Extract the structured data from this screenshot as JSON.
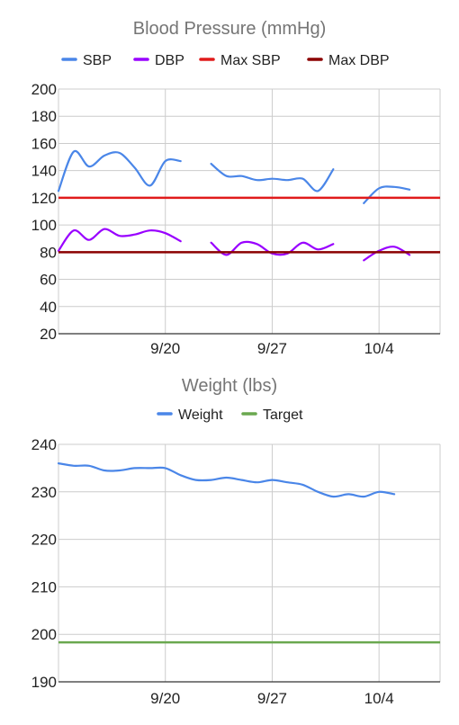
{
  "chart_data": [
    {
      "id": "bp",
      "type": "line",
      "title": "Blood Pressure (mmHg)",
      "ylim": [
        20,
        200
      ],
      "y_ticks": [
        20,
        40,
        60,
        80,
        100,
        120,
        140,
        160,
        180,
        200
      ],
      "x_tick_labels": [
        {
          "date": "2023-09-20",
          "label": "9/20"
        },
        {
          "date": "2023-09-27",
          "label": "9/27"
        },
        {
          "date": "2023-10-04",
          "label": "10/4"
        }
      ],
      "xlim": [
        "2023-09-13",
        "2023-10-08"
      ],
      "grid": true,
      "legend_position": "top",
      "series": [
        {
          "name": "SBP",
          "color": "#4a86e8",
          "segments": [
            [
              [
                "2023-09-13",
                125
              ],
              [
                "2023-09-14",
                154
              ],
              [
                "2023-09-15",
                143
              ],
              [
                "2023-09-16",
                151
              ],
              [
                "2023-09-17",
                153
              ],
              [
                "2023-09-18",
                142
              ],
              [
                "2023-09-19",
                129
              ],
              [
                "2023-09-20",
                147
              ],
              [
                "2023-09-21",
                147
              ]
            ],
            [
              [
                "2023-09-23",
                145
              ],
              [
                "2023-09-24",
                136
              ],
              [
                "2023-09-25",
                136
              ],
              [
                "2023-09-26",
                133
              ],
              [
                "2023-09-27",
                134
              ],
              [
                "2023-09-28",
                133
              ],
              [
                "2023-09-29",
                134
              ],
              [
                "2023-09-30",
                125
              ],
              [
                "2023-10-01",
                141
              ]
            ],
            [
              [
                "2023-10-03",
                116
              ],
              [
                "2023-10-04",
                127
              ],
              [
                "2023-10-05",
                128
              ],
              [
                "2023-10-06",
                126
              ]
            ]
          ]
        },
        {
          "name": "DBP",
          "color": "#9900ff",
          "segments": [
            [
              [
                "2023-09-13",
                81
              ],
              [
                "2023-09-14",
                96
              ],
              [
                "2023-09-15",
                89
              ],
              [
                "2023-09-16",
                97
              ],
              [
                "2023-09-17",
                92
              ],
              [
                "2023-09-18",
                93
              ],
              [
                "2023-09-19",
                96
              ],
              [
                "2023-09-20",
                94
              ],
              [
                "2023-09-21",
                88
              ]
            ],
            [
              [
                "2023-09-23",
                87
              ],
              [
                "2023-09-24",
                78
              ],
              [
                "2023-09-25",
                87
              ],
              [
                "2023-09-26",
                86
              ],
              [
                "2023-09-27",
                79
              ],
              [
                "2023-09-28",
                79
              ],
              [
                "2023-09-29",
                87
              ],
              [
                "2023-09-30",
                82
              ],
              [
                "2023-10-01",
                86
              ]
            ],
            [
              [
                "2023-10-03",
                74
              ],
              [
                "2023-10-04",
                81
              ],
              [
                "2023-10-05",
                84
              ],
              [
                "2023-10-06",
                78
              ]
            ]
          ]
        },
        {
          "name": "Max SBP",
          "color": "#e01b1b",
          "constant": 120
        },
        {
          "name": "Max DBP",
          "color": "#8b0000",
          "constant": 80
        }
      ]
    },
    {
      "id": "wt",
      "type": "line",
      "title": "Weight (lbs)",
      "ylim": [
        190,
        240
      ],
      "y_ticks": [
        190,
        200,
        210,
        220,
        230,
        240
      ],
      "x_tick_labels": [
        {
          "date": "2023-09-20",
          "label": "9/20"
        },
        {
          "date": "2023-09-27",
          "label": "9/27"
        },
        {
          "date": "2023-10-04",
          "label": "10/4"
        }
      ],
      "xlim": [
        "2023-09-13",
        "2023-10-08"
      ],
      "grid": true,
      "legend_position": "top",
      "series": [
        {
          "name": "Weight",
          "color": "#4a86e8",
          "segments": [
            [
              [
                "2023-09-13",
                236
              ],
              [
                "2023-09-14",
                235.5
              ],
              [
                "2023-09-15",
                235.5
              ],
              [
                "2023-09-16",
                234.5
              ],
              [
                "2023-09-17",
                234.5
              ],
              [
                "2023-09-18",
                235
              ],
              [
                "2023-09-19",
                235
              ],
              [
                "2023-09-20",
                235
              ],
              [
                "2023-09-21",
                233.5
              ],
              [
                "2023-09-22",
                232.5
              ],
              [
                "2023-09-23",
                232.5
              ],
              [
                "2023-09-24",
                233
              ],
              [
                "2023-09-25",
                232.5
              ],
              [
                "2023-09-26",
                232
              ],
              [
                "2023-09-27",
                232.5
              ],
              [
                "2023-09-28",
                232
              ],
              [
                "2023-09-29",
                231.5
              ],
              [
                "2023-09-30",
                230
              ],
              [
                "2023-10-01",
                229
              ],
              [
                "2023-10-02",
                229.5
              ],
              [
                "2023-10-03",
                229
              ],
              [
                "2023-10-04",
                230
              ],
              [
                "2023-10-05",
                229.5
              ]
            ]
          ]
        },
        {
          "name": "Target",
          "color": "#6aa84f",
          "constant": 198.3
        }
      ]
    }
  ]
}
